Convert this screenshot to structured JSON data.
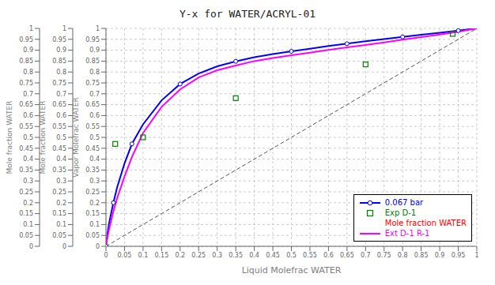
{
  "chart_data": {
    "type": "line",
    "title": "Y-x for WATER/ACRYL-01",
    "xlabel": "Liquid Molefrac WATER",
    "ylabel": "Vapor Molefrac WATER",
    "extra_ylabels": [
      "Mole fraction WATER",
      "Mole fraction WATER"
    ],
    "xlim": [
      0,
      1
    ],
    "ylim": [
      0,
      1
    ],
    "xticks": [
      0,
      0.05,
      0.1,
      0.15,
      0.2,
      0.25,
      0.3,
      0.35,
      0.4,
      0.45,
      0.5,
      0.55,
      0.6,
      0.65,
      0.7,
      0.75,
      0.8,
      0.85,
      0.9,
      0.95,
      1
    ],
    "yticks": [
      0,
      0.05,
      0.1,
      0.15,
      0.2,
      0.25,
      0.3,
      0.35,
      0.4,
      0.45,
      0.5,
      0.55,
      0.6,
      0.65,
      0.7,
      0.75,
      0.8,
      0.85,
      0.9,
      0.95,
      1
    ],
    "grid": true,
    "legend": "lower right",
    "series": [
      {
        "type": "line",
        "line_style": "dashed",
        "color": "#555555",
        "x": [
          0,
          1
        ],
        "values": [
          0,
          1
        ]
      },
      {
        "name": "0.067 bar",
        "type": "line",
        "line_style": "solid",
        "marker": "circle",
        "color": "#0000FF",
        "x": [
          0.0,
          0.005,
          0.01,
          0.02,
          0.03,
          0.05,
          0.07,
          0.1,
          0.15,
          0.2,
          0.25,
          0.3,
          0.35,
          0.4,
          0.45,
          0.5,
          0.55,
          0.6,
          0.65,
          0.7,
          0.75,
          0.8,
          0.85,
          0.9,
          0.95,
          1.0
        ],
        "values": [
          0.0,
          0.07,
          0.12,
          0.2,
          0.27,
          0.38,
          0.47,
          0.56,
          0.67,
          0.745,
          0.793,
          0.826,
          0.849,
          0.868,
          0.882,
          0.895,
          0.907,
          0.919,
          0.93,
          0.941,
          0.951,
          0.961,
          0.971,
          0.98,
          0.99,
          1.0
        ]
      },
      {
        "name": "Exp D-1",
        "type": "scatter",
        "marker": "square",
        "color": "#008000",
        "x": [
          0.025,
          0.1,
          0.35,
          0.7,
          0.935
        ],
        "values": [
          0.47,
          0.5,
          0.68,
          0.835,
          0.975
        ]
      },
      {
        "name": "Mole fraction WATER",
        "type": "line",
        "color": "#FF0000",
        "x": [],
        "values": []
      },
      {
        "name": "Ext D-1 R-1",
        "type": "line",
        "line_style": "solid",
        "color": "#FF00FF",
        "x": [
          0.0,
          0.005,
          0.01,
          0.02,
          0.03,
          0.05,
          0.07,
          0.1,
          0.15,
          0.2,
          0.25,
          0.3,
          0.35,
          0.4,
          0.45,
          0.5,
          0.55,
          0.6,
          0.65,
          0.7,
          0.75,
          0.8,
          0.85,
          0.9,
          0.95,
          1.0
        ],
        "values": [
          0.0,
          0.05,
          0.09,
          0.16,
          0.22,
          0.32,
          0.41,
          0.52,
          0.64,
          0.72,
          0.775,
          0.808,
          0.83,
          0.85,
          0.864,
          0.877,
          0.889,
          0.901,
          0.913,
          0.924,
          0.936,
          0.948,
          0.96,
          0.972,
          0.985,
          1.0
        ]
      }
    ]
  }
}
